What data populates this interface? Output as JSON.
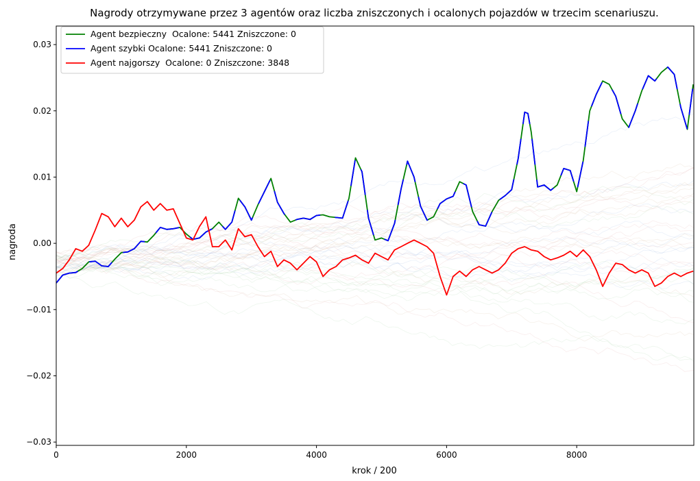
{
  "chart_data": {
    "type": "line",
    "title": "Nagrody otrzymywane przez 3 agentów oraz liczba zniszczonych i ocalonych pojazdów w trzecim scenariuszu.",
    "xlabel": "krok / 200",
    "ylabel": "nagroda",
    "xlim": [
      0,
      9800
    ],
    "ylim": [
      -0.0305,
      0.0328
    ],
    "x_ticks": [
      0,
      2000,
      4000,
      6000,
      8000
    ],
    "x_tick_labels": [
      "0",
      "2000",
      "4000",
      "6000",
      "8000"
    ],
    "y_ticks": [
      -0.03,
      -0.02,
      -0.01,
      0.0,
      0.01,
      0.02,
      0.03
    ],
    "y_tick_labels": [
      "−0.03",
      "−0.02",
      "−0.01",
      "0.00",
      "0.01",
      "0.02",
      "0.03"
    ],
    "grid": false,
    "legend_position": "top-left",
    "series": [
      {
        "name": "Agent bezpieczny  Ocalone: 5441 Zniszczone: 0",
        "color": "#008000",
        "x": [
          0,
          100,
          200,
          300,
          400,
          500,
          600,
          700,
          800,
          900,
          1000,
          1100,
          1200,
          1300,
          1400,
          1500,
          1600,
          1700,
          1800,
          1900,
          2000,
          2100,
          2200,
          2300,
          2400,
          2500,
          2600,
          2700,
          2800,
          2900,
          3000,
          3100,
          3200,
          3300,
          3400,
          3500,
          3600,
          3700,
          3800,
          3900,
          4000,
          4100,
          4200,
          4300,
          4400,
          4500,
          4600,
          4700,
          4800,
          4900,
          5000,
          5100,
          5200,
          5300,
          5400,
          5500,
          5600,
          5700,
          5800,
          5900,
          6000,
          6100,
          6200,
          6300,
          6400,
          6500,
          6600,
          6700,
          6800,
          6900,
          7000,
          7100,
          7200,
          7250,
          7300,
          7400,
          7500,
          7600,
          7700,
          7800,
          7900,
          8000,
          8100,
          8200,
          8300,
          8400,
          8500,
          8600,
          8700,
          8800,
          8900,
          9000,
          9100,
          9200,
          9300,
          9400,
          9500,
          9600,
          9700,
          9790
        ],
        "y": [
          -0.006,
          -0.0048,
          -0.0045,
          -0.0044,
          -0.0038,
          -0.0028,
          -0.0027,
          -0.0034,
          -0.0035,
          -0.0024,
          -0.0014,
          -0.0013,
          -0.0008,
          0.0003,
          0.0002,
          0.0012,
          0.0024,
          0.0021,
          0.0022,
          0.0024,
          0.0014,
          0.0006,
          0.0008,
          0.0017,
          0.0022,
          0.0032,
          0.0021,
          0.0032,
          0.0068,
          0.0055,
          0.0035,
          0.0058,
          0.0078,
          0.0098,
          0.0062,
          0.0045,
          0.0032,
          0.0036,
          0.0038,
          0.0036,
          0.0042,
          0.0043,
          0.004,
          0.0039,
          0.0038,
          0.0068,
          0.0129,
          0.0108,
          0.0038,
          0.0005,
          0.0008,
          0.0004,
          0.003,
          0.0082,
          0.0124,
          0.01,
          0.0056,
          0.0035,
          0.004,
          0.006,
          0.0067,
          0.0071,
          0.0093,
          0.0088,
          0.0048,
          0.0028,
          0.0026,
          0.0048,
          0.0065,
          0.0072,
          0.0081,
          0.0128,
          0.0198,
          0.0196,
          0.0168,
          0.0085,
          0.0088,
          0.008,
          0.0088,
          0.0113,
          0.011,
          0.0078,
          0.0125,
          0.02,
          0.0225,
          0.0245,
          0.024,
          0.0222,
          0.0188,
          0.0175,
          0.02,
          0.023,
          0.0253,
          0.0245,
          0.0258,
          0.0266,
          0.0255,
          0.0205,
          0.0172,
          0.024
        ]
      },
      {
        "name": "Agent szybki Ocalone: 5441 Zniszczone: 0",
        "color": "#0000ff",
        "x": [
          0,
          100,
          200,
          300,
          400,
          500,
          600,
          700,
          800,
          900,
          1000,
          1100,
          1200,
          1300,
          1400,
          1500,
          1600,
          1700,
          1800,
          1900,
          2000,
          2100,
          2200,
          2300,
          2400,
          2500,
          2600,
          2700,
          2800,
          2900,
          3000,
          3100,
          3200,
          3300,
          3400,
          3500,
          3600,
          3700,
          3800,
          3900,
          4000,
          4100,
          4200,
          4300,
          4400,
          4500,
          4600,
          4700,
          4800,
          4900,
          5000,
          5100,
          5200,
          5300,
          5400,
          5500,
          5600,
          5700,
          5800,
          5900,
          6000,
          6100,
          6200,
          6300,
          6400,
          6500,
          6600,
          6700,
          6800,
          6900,
          7000,
          7100,
          7200,
          7250,
          7300,
          7400,
          7500,
          7600,
          7700,
          7800,
          7900,
          8000,
          8100,
          8200,
          8300,
          8400,
          8500,
          8600,
          8700,
          8800,
          8900,
          9000,
          9100,
          9200,
          9300,
          9400,
          9500,
          9600,
          9700,
          9790
        ],
        "y": [
          -0.006,
          -0.0048,
          -0.0045,
          -0.0044,
          -0.0038,
          -0.0028,
          -0.0027,
          -0.0034,
          -0.0035,
          -0.0024,
          -0.0014,
          -0.0013,
          -0.0008,
          0.0003,
          0.0002,
          0.0012,
          0.0024,
          0.0021,
          0.0022,
          0.0024,
          0.0014,
          0.0006,
          0.0008,
          0.0017,
          0.0022,
          0.0032,
          0.0021,
          0.0032,
          0.0068,
          0.0055,
          0.0035,
          0.0058,
          0.0078,
          0.0098,
          0.0062,
          0.0045,
          0.0032,
          0.0036,
          0.0038,
          0.0036,
          0.0042,
          0.0043,
          0.004,
          0.0039,
          0.0038,
          0.0068,
          0.0129,
          0.0108,
          0.0038,
          0.0005,
          0.0008,
          0.0004,
          0.003,
          0.0082,
          0.0124,
          0.01,
          0.0056,
          0.0035,
          0.004,
          0.006,
          0.0067,
          0.0071,
          0.0093,
          0.0088,
          0.0048,
          0.0028,
          0.0026,
          0.0048,
          0.0065,
          0.0072,
          0.0081,
          0.0128,
          0.0198,
          0.0196,
          0.0168,
          0.0085,
          0.0088,
          0.008,
          0.0088,
          0.0113,
          0.011,
          0.0078,
          0.0125,
          0.02,
          0.0225,
          0.0245,
          0.024,
          0.0222,
          0.0188,
          0.0175,
          0.02,
          0.023,
          0.0253,
          0.0245,
          0.0258,
          0.0266,
          0.0255,
          0.0205,
          0.0172,
          0.024
        ]
      },
      {
        "name": "Agent najgorszy  Ocalone: 0 Zniszczone: 3848",
        "color": "#ff0000",
        "x": [
          0,
          100,
          200,
          300,
          400,
          500,
          600,
          700,
          800,
          900,
          1000,
          1100,
          1200,
          1300,
          1400,
          1500,
          1600,
          1700,
          1800,
          1900,
          2000,
          2100,
          2200,
          2300,
          2400,
          2500,
          2600,
          2700,
          2800,
          2900,
          3000,
          3100,
          3200,
          3300,
          3400,
          3500,
          3600,
          3700,
          3800,
          3900,
          4000,
          4100,
          4200,
          4300,
          4400,
          4500,
          4600,
          4700,
          4800,
          4900,
          5000,
          5100,
          5200,
          5300,
          5400,
          5500,
          5600,
          5700,
          5800,
          5900,
          6000,
          6100,
          6200,
          6300,
          6400,
          6500,
          6600,
          6700,
          6800,
          6900,
          7000,
          7100,
          7200,
          7300,
          7400,
          7500,
          7600,
          7700,
          7800,
          7900,
          8000,
          8100,
          8200,
          8300,
          8400,
          8500,
          8600,
          8700,
          8800,
          8900,
          9000,
          9100,
          9200,
          9300,
          9400,
          9500,
          9600,
          9700,
          9790
        ],
        "y": [
          -0.0045,
          -0.0038,
          -0.0025,
          -0.0008,
          -0.0012,
          -0.0003,
          0.002,
          0.0045,
          0.004,
          0.0025,
          0.0038,
          0.0025,
          0.0035,
          0.0055,
          0.0063,
          0.005,
          0.006,
          0.005,
          0.0052,
          0.003,
          0.0008,
          0.0005,
          0.0025,
          0.004,
          -0.0005,
          -0.0005,
          0.0005,
          -0.001,
          0.0022,
          0.001,
          0.0013,
          -0.0005,
          -0.002,
          -0.0012,
          -0.0035,
          -0.0025,
          -0.003,
          -0.004,
          -0.003,
          -0.002,
          -0.0028,
          -0.005,
          -0.004,
          -0.0035,
          -0.0025,
          -0.0022,
          -0.0018,
          -0.0025,
          -0.003,
          -0.0015,
          -0.002,
          -0.0025,
          -0.001,
          -0.0005,
          0.0,
          0.0005,
          0.0,
          -0.0005,
          -0.0015,
          -0.005,
          -0.0078,
          -0.005,
          -0.0042,
          -0.005,
          -0.004,
          -0.0035,
          -0.004,
          -0.0045,
          -0.004,
          -0.003,
          -0.0015,
          -0.0008,
          -0.0005,
          -0.001,
          -0.0012,
          -0.002,
          -0.0025,
          -0.0022,
          -0.0018,
          -0.0012,
          -0.002,
          -0.001,
          -0.002,
          -0.004,
          -0.0065,
          -0.0045,
          -0.003,
          -0.0032,
          -0.004,
          -0.0045,
          -0.004,
          -0.0045,
          -0.0065,
          -0.006,
          -0.005,
          -0.0045,
          -0.005,
          -0.0045,
          -0.0042
        ]
      }
    ]
  }
}
